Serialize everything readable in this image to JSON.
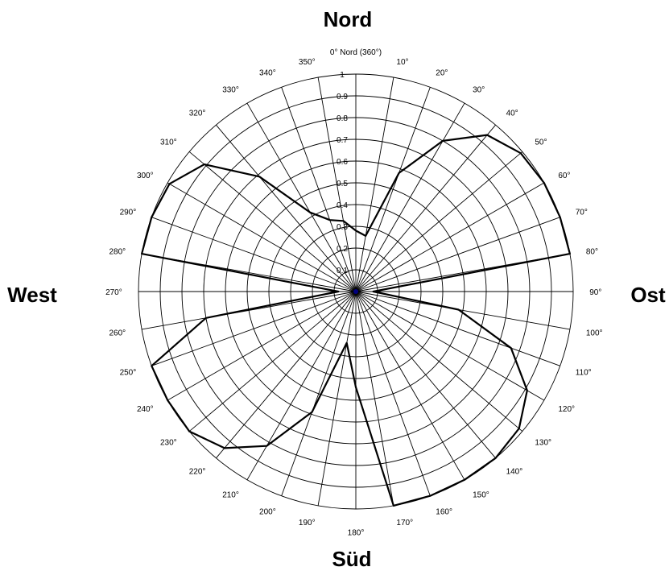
{
  "chart_data": {
    "type": "line",
    "subtype": "polar",
    "cardinals": {
      "north": "Nord",
      "east": "Ost",
      "south": "Süd",
      "west": "West"
    },
    "angle_labels": [
      "0° Nord (360°)",
      "10°",
      "20°",
      "30°",
      "40°",
      "50°",
      "60°",
      "70°",
      "80°",
      "90°",
      "100°",
      "110°",
      "120°",
      "130°",
      "140°",
      "150°",
      "160°",
      "170°",
      "180°",
      "190°",
      "200°",
      "210°",
      "220°",
      "230°",
      "240°",
      "250°",
      "260°",
      "270°",
      "280°",
      "290°",
      "300°",
      "310°",
      "320°",
      "330°",
      "340°",
      "350°"
    ],
    "radial_ticks": [
      "0.1",
      "0.2",
      "0.3",
      "0.4",
      "0.5",
      "0.6",
      "0.7",
      "0.8",
      "0.9",
      "1"
    ],
    "r_range": [
      0,
      1
    ],
    "angle_step_deg": 10,
    "grid": true,
    "center_color": "#00007f",
    "line_color": "#000000",
    "series": [
      {
        "angles": [
          0,
          10,
          20,
          30,
          40,
          50,
          60,
          70,
          80,
          90,
          100,
          110,
          120,
          130,
          140,
          150,
          160,
          170,
          180,
          190,
          200,
          210,
          220,
          230,
          240,
          250,
          260,
          270,
          280,
          290,
          300,
          310,
          320,
          330,
          340,
          350,
          360
        ],
        "values": [
          0.28,
          0.26,
          0.58,
          0.8,
          0.94,
          0.99,
          1.0,
          1.0,
          1.0,
          0.08,
          0.48,
          0.76,
          0.91,
          0.98,
          1.0,
          1.0,
          1.0,
          1.0,
          0.44,
          0.24,
          0.59,
          0.82,
          0.94,
          1.0,
          1.0,
          1.0,
          0.7,
          0.08,
          1.0,
          1.0,
          0.99,
          0.91,
          0.69,
          0.42,
          0.35,
          0.33,
          0.28
        ]
      }
    ]
  }
}
